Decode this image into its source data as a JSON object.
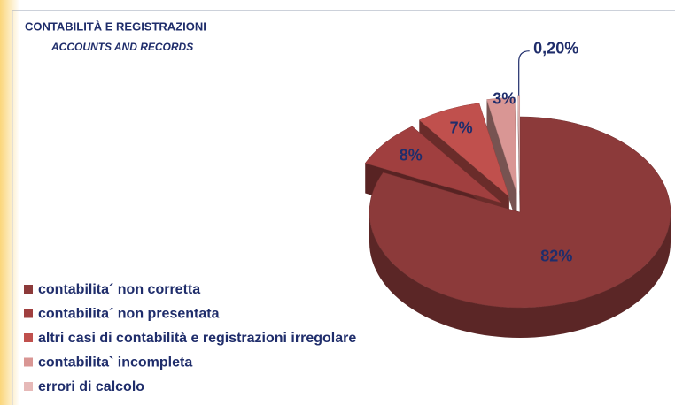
{
  "chart_data": {
    "type": "pie",
    "title": "CONTABILITÀ E REGISTRAZIONI",
    "subtitle": "ACCOUNTS AND RECORDS",
    "categories": [
      "contabilita´ non corretta",
      "contabilita´ non presentata",
      "altri casi di contabilità e registrazioni irregolare",
      "contabilita` incompleta",
      "errori di calcolo"
    ],
    "values": [
      82,
      8,
      7,
      3,
      0.2
    ],
    "value_labels": [
      "82%",
      "8%",
      "7%",
      "3%",
      "0,20%"
    ],
    "colors": [
      "#8c3a3a",
      "#a03f3f",
      "#c0504d",
      "#d99694",
      "#e6b9b8"
    ],
    "legend": "bottom-left"
  }
}
